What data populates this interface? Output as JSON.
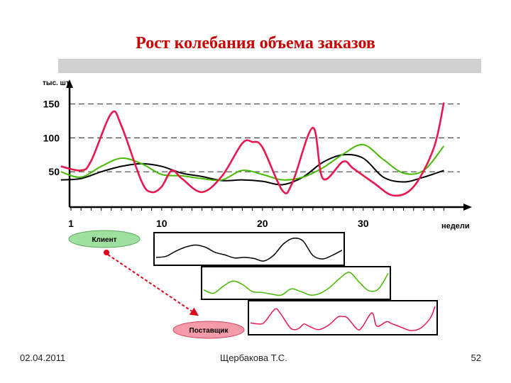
{
  "slide": {
    "title": "Рост колебания объема заказов",
    "footer_date": "02.04.2011",
    "footer_author": "Щербакова Т.С.",
    "footer_page": "52"
  },
  "chart_data": {
    "type": "line",
    "ylabel": "тыс. шт.",
    "xlabel": "недели",
    "xlim": [
      0,
      38
    ],
    "ylim": [
      0,
      160
    ],
    "x_ticks": [
      1,
      10,
      20,
      30
    ],
    "y_ticks": [
      50,
      100,
      150
    ],
    "grid": "dashed at y ticks",
    "series": [
      {
        "name": "",
        "color": "#000000",
        "x": [
          0,
          2,
          4,
          6,
          8,
          10,
          12,
          14,
          16,
          18,
          20,
          22,
          24,
          26,
          28,
          30,
          32,
          34,
          36,
          38
        ],
        "values": [
          38,
          40,
          50,
          58,
          62,
          58,
          48,
          43,
          37,
          38,
          36,
          31,
          42,
          64,
          75,
          70,
          42,
          35,
          42,
          52
        ]
      },
      {
        "name": "",
        "color": "#44bb00",
        "x": [
          0,
          2,
          4,
          6,
          8,
          10,
          12,
          14,
          16,
          18,
          20,
          22,
          24,
          26,
          28,
          30,
          32,
          34,
          36,
          38
        ],
        "values": [
          50,
          42,
          58,
          70,
          62,
          46,
          44,
          40,
          38,
          52,
          46,
          38,
          42,
          56,
          76,
          90,
          68,
          48,
          52,
          88
        ]
      },
      {
        "name": "",
        "color": "#e8174f",
        "x": [
          0,
          2,
          3,
          5,
          6,
          8,
          9,
          10,
          11,
          12,
          14,
          16,
          18,
          19,
          20,
          22,
          23,
          25,
          26,
          28,
          29,
          31,
          33,
          35,
          37,
          38
        ],
        "values": [
          58,
          52,
          66,
          136,
          118,
          36,
          20,
          28,
          52,
          40,
          20,
          44,
          92,
          94,
          86,
          22,
          35,
          115,
          40,
          65,
          55,
          34,
          15,
          28,
          85,
          152
        ]
      }
    ],
    "mini_panels": {
      "client_label": "Клиент",
      "supplier_label": "Поставщик"
    }
  }
}
